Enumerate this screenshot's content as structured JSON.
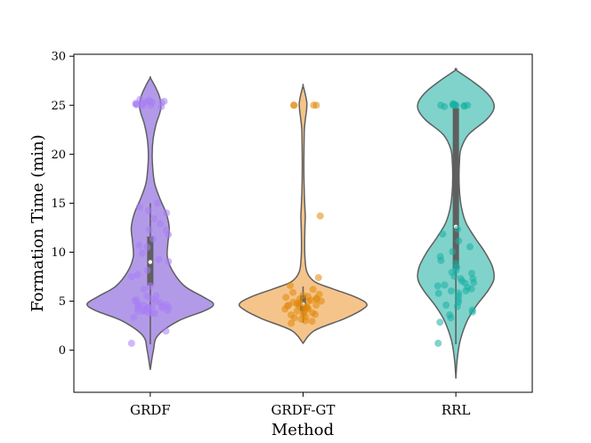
{
  "chart_data": {
    "type": "violin",
    "xlabel": "Method",
    "ylabel": "Formation Time (min)",
    "ylim": [
      -4.3,
      30.2
    ],
    "yticks": [
      0,
      5,
      10,
      15,
      20,
      25,
      30
    ],
    "grid": false,
    "legend": "none",
    "groups": [
      {
        "name": "GRDF",
        "fill": "#b39ae8",
        "point_color": "#a77df5",
        "range": [
          -2.0,
          27.8
        ],
        "q1": 6.6,
        "median": 9.0,
        "q3": 11.6,
        "whisker_low": 0.6,
        "whisker_high": 15.0,
        "density": [
          [
            -2.0,
            0.0
          ],
          [
            0.0,
            0.05
          ],
          [
            1.5,
            0.12
          ],
          [
            3.0,
            0.45
          ],
          [
            4.0,
            0.85
          ],
          [
            4.7,
            1.0
          ],
          [
            5.5,
            0.82
          ],
          [
            6.5,
            0.55
          ],
          [
            8.0,
            0.36
          ],
          [
            9.5,
            0.27
          ],
          [
            11.0,
            0.28
          ],
          [
            12.5,
            0.3
          ],
          [
            14.0,
            0.25
          ],
          [
            15.5,
            0.15
          ],
          [
            17.0,
            0.07
          ],
          [
            18.5,
            0.04
          ],
          [
            20.0,
            0.03
          ],
          [
            21.5,
            0.045
          ],
          [
            23.0,
            0.09
          ],
          [
            24.2,
            0.15
          ],
          [
            25.0,
            0.17
          ],
          [
            26.0,
            0.14
          ],
          [
            27.0,
            0.07
          ],
          [
            27.8,
            0.0
          ]
        ],
        "points": [
          [
            0.8,
            0.6
          ],
          [
            2.1,
            1.8
          ],
          [
            2.8,
            3.9
          ],
          [
            3.2,
            4.3
          ],
          [
            3.5,
            4.5
          ],
          [
            3.6,
            4.0
          ],
          [
            3.7,
            3.8
          ],
          [
            3.9,
            4.7
          ],
          [
            4.0,
            4.1
          ],
          [
            4.1,
            4.6
          ],
          [
            4.2,
            3.9
          ],
          [
            4.3,
            4.3
          ],
          [
            4.4,
            4.8
          ],
          [
            4.5,
            4.2
          ],
          [
            4.6,
            4.4
          ],
          [
            4.7,
            4.0
          ],
          [
            4.8,
            4.5
          ],
          [
            4.9,
            3.7
          ],
          [
            5.0,
            4.9
          ],
          [
            5.1,
            4.1
          ],
          [
            5.2,
            4.6
          ],
          [
            5.4,
            5.0
          ],
          [
            5.6,
            5.5
          ],
          [
            5.8,
            5.2
          ],
          [
            6.0,
            4.3
          ],
          [
            6.3,
            6.1
          ],
          [
            6.6,
            6.5
          ],
          [
            7.0,
            8.0
          ],
          [
            7.5,
            7.9
          ],
          [
            8.0,
            8.3
          ],
          [
            8.5,
            9.6
          ],
          [
            9.0,
            9.5
          ],
          [
            9.5,
            10.3
          ],
          [
            10.0,
            11.0
          ],
          [
            10.5,
            10.9
          ],
          [
            11.2,
            11.5
          ],
          [
            11.6,
            12.0
          ],
          [
            12.0,
            12.5
          ],
          [
            12.3,
            12.3
          ],
          [
            12.8,
            13.0
          ],
          [
            13.3,
            13.5
          ],
          [
            14.0,
            14.0
          ],
          [
            14.2,
            14.3
          ],
          [
            14.6,
            14.6
          ],
          [
            15.0,
            15.0
          ],
          [
            25.0,
            24.7
          ],
          [
            25.0,
            24.9
          ],
          [
            25.0,
            25.0
          ],
          [
            25.0,
            25.1
          ],
          [
            25.0,
            25.2
          ],
          [
            25.0,
            25.3
          ],
          [
            25.0,
            25.4
          ],
          [
            25.0,
            25.5
          ],
          [
            25.0,
            25.6
          ],
          [
            25.0,
            25.7
          ],
          [
            25.0,
            25.8
          ],
          [
            25.0,
            26.0
          ],
          [
            25.0,
            26.2
          ],
          [
            4.4,
            3.6
          ],
          [
            4.6,
            4.7
          ],
          [
            3.9,
            4.0
          ],
          [
            5.3,
            4.8
          ]
        ]
      },
      {
        "name": "GRDF-GT",
        "fill": "#f5c48a",
        "point_color": "#e0880a",
        "range": [
          0.7,
          27.0
        ],
        "q1": 4.0,
        "median": 4.7,
        "q3": 5.6,
        "whisker_low": 2.8,
        "whisker_high": 6.5,
        "density": [
          [
            0.7,
            0.0
          ],
          [
            2.0,
            0.18
          ],
          [
            3.2,
            0.65
          ],
          [
            4.2,
            0.95
          ],
          [
            4.8,
            1.0
          ],
          [
            5.5,
            0.8
          ],
          [
            6.3,
            0.45
          ],
          [
            7.0,
            0.18
          ],
          [
            8.0,
            0.06
          ],
          [
            9.5,
            0.03
          ],
          [
            11.0,
            0.025
          ],
          [
            12.5,
            0.03
          ],
          [
            13.7,
            0.035
          ],
          [
            15.0,
            0.025
          ],
          [
            17.0,
            0.015
          ],
          [
            19.0,
            0.012
          ],
          [
            21.0,
            0.015
          ],
          [
            22.5,
            0.02
          ],
          [
            23.5,
            0.035
          ],
          [
            24.5,
            0.055
          ],
          [
            25.2,
            0.06
          ],
          [
            26.0,
            0.04
          ],
          [
            27.0,
            0.0
          ]
        ],
        "points": [
          [
            2.8,
            2.7
          ],
          [
            3.0,
            2.9
          ],
          [
            3.2,
            2.8
          ],
          [
            3.3,
            3.0
          ],
          [
            3.5,
            3.1
          ],
          [
            3.7,
            3.6
          ],
          [
            3.8,
            3.8
          ],
          [
            3.9,
            3.4
          ],
          [
            4.0,
            3.7
          ],
          [
            4.1,
            3.9
          ],
          [
            4.2,
            4.2
          ],
          [
            4.3,
            4.3
          ],
          [
            4.4,
            4.4
          ],
          [
            4.5,
            4.5
          ],
          [
            4.6,
            4.6
          ],
          [
            4.7,
            4.7
          ],
          [
            4.8,
            4.8
          ],
          [
            4.9,
            4.9
          ],
          [
            5.0,
            5.0
          ],
          [
            5.1,
            5.1
          ],
          [
            5.2,
            5.2
          ],
          [
            5.3,
            5.3
          ],
          [
            5.4,
            5.4
          ],
          [
            5.5,
            5.5
          ],
          [
            5.7,
            5.7
          ],
          [
            5.9,
            5.9
          ],
          [
            6.2,
            6.2
          ],
          [
            6.6,
            6.6
          ],
          [
            7.4,
            7.4
          ],
          [
            3.6,
            3.6
          ],
          [
            4.0,
            4.0
          ],
          [
            4.4,
            4.4
          ],
          [
            4.8,
            4.8
          ],
          [
            5.2,
            5.2
          ],
          [
            3.4,
            3.4
          ],
          [
            4.6,
            4.6
          ],
          [
            5.0,
            5.0
          ],
          [
            13.7,
            13.7
          ],
          [
            25.0,
            25.0
          ],
          [
            25.0,
            25.0
          ],
          [
            25.0,
            25.0
          ],
          [
            25.0,
            25.0
          ],
          [
            4.2,
            4.2
          ],
          [
            4.5,
            4.5
          ],
          [
            5.6,
            5.6
          ]
        ]
      },
      {
        "name": "RRL",
        "fill": "#7fd3cb",
        "point_color": "#1aafa3",
        "range": [
          -2.9,
          28.6
        ],
        "q1": 8.3,
        "median": 12.6,
        "q3": 24.7,
        "whisker_low": 0.6,
        "whisker_high": 25.0,
        "density": [
          [
            -2.9,
            0.0
          ],
          [
            -1.0,
            0.02
          ],
          [
            1.0,
            0.07
          ],
          [
            3.0,
            0.18
          ],
          [
            4.5,
            0.32
          ],
          [
            6.0,
            0.5
          ],
          [
            7.2,
            0.6
          ],
          [
            8.5,
            0.58
          ],
          [
            10.0,
            0.46
          ],
          [
            11.5,
            0.3
          ],
          [
            13.0,
            0.16
          ],
          [
            14.5,
            0.09
          ],
          [
            16.0,
            0.06
          ],
          [
            17.5,
            0.05
          ],
          [
            19.0,
            0.055
          ],
          [
            20.5,
            0.08
          ],
          [
            22.0,
            0.2
          ],
          [
            23.5,
            0.48
          ],
          [
            24.6,
            0.6
          ],
          [
            25.5,
            0.58
          ],
          [
            26.5,
            0.45
          ],
          [
            27.5,
            0.25
          ],
          [
            28.6,
            0.0
          ]
        ],
        "points": [
          [
            0.8,
            0.6
          ],
          [
            2.8,
            2.9
          ],
          [
            3.2,
            3.4
          ],
          [
            3.5,
            3.7
          ],
          [
            4.0,
            4.2
          ],
          [
            4.4,
            4.5
          ],
          [
            4.8,
            5.0
          ],
          [
            5.2,
            5.1
          ],
          [
            5.5,
            5.6
          ],
          [
            5.8,
            5.9
          ],
          [
            6.0,
            6.1
          ],
          [
            6.2,
            6.3
          ],
          [
            6.4,
            6.4
          ],
          [
            6.6,
            6.7
          ],
          [
            6.8,
            6.9
          ],
          [
            7.0,
            7.1
          ],
          [
            7.3,
            7.3
          ],
          [
            7.6,
            7.5
          ],
          [
            7.9,
            7.8
          ],
          [
            8.2,
            8.1
          ],
          [
            8.5,
            8.4
          ],
          [
            8.8,
            8.9
          ],
          [
            9.2,
            9.1
          ],
          [
            9.6,
            9.5
          ],
          [
            10.1,
            10.0
          ],
          [
            10.6,
            10.5
          ],
          [
            11.2,
            11.1
          ],
          [
            11.8,
            11.9
          ],
          [
            12.3,
            12.4
          ],
          [
            6.1,
            6.0
          ],
          [
            6.5,
            6.6
          ],
          [
            7.2,
            7.4
          ],
          [
            5.9,
            5.7
          ],
          [
            8.0,
            7.9
          ],
          [
            25.0,
            24.7
          ],
          [
            25.0,
            24.8
          ],
          [
            25.0,
            24.9
          ],
          [
            25.0,
            25.0
          ],
          [
            25.0,
            25.1
          ],
          [
            25.0,
            25.2
          ],
          [
            25.0,
            25.3
          ],
          [
            25.0,
            25.0
          ],
          [
            25.0,
            25.0
          ],
          [
            25.0,
            25.0
          ],
          [
            25.0,
            25.0
          ],
          [
            3.9,
            3.9
          ],
          [
            4.6,
            4.6
          ],
          [
            6.9,
            6.9
          ]
        ]
      }
    ]
  }
}
